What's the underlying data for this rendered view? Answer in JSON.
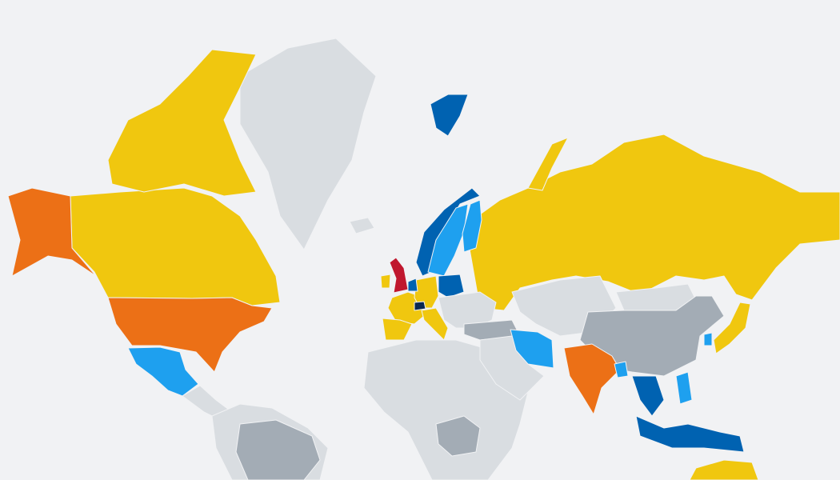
{
  "map": {
    "background": "#f1f2f4",
    "categories": {
      "none": "#d9dde1",
      "low": "#a3acb5",
      "yellow": "#f0c70f",
      "orange": "#ec7016",
      "light_blue": "#1ea0ef",
      "dark_blue": "#0062b1",
      "red": "#c0172e",
      "navy": "#0b2850"
    },
    "regions": [
      {
        "name": "greenland",
        "category": "none"
      },
      {
        "name": "canada",
        "category": "yellow"
      },
      {
        "name": "canada-arctic-islands",
        "category": "yellow"
      },
      {
        "name": "alaska",
        "category": "orange"
      },
      {
        "name": "united-states",
        "category": "orange"
      },
      {
        "name": "mexico",
        "category": "light_blue"
      },
      {
        "name": "central-america",
        "category": "none"
      },
      {
        "name": "south-america",
        "category": "none"
      },
      {
        "name": "brazil",
        "category": "low"
      },
      {
        "name": "russia",
        "category": "yellow"
      },
      {
        "name": "russia-arctic-islands",
        "category": "yellow"
      },
      {
        "name": "svalbard",
        "category": "dark_blue"
      },
      {
        "name": "norway",
        "category": "dark_blue"
      },
      {
        "name": "sweden",
        "category": "light_blue"
      },
      {
        "name": "finland",
        "category": "light_blue"
      },
      {
        "name": "united-kingdom",
        "category": "red"
      },
      {
        "name": "ireland",
        "category": "yellow"
      },
      {
        "name": "france",
        "category": "yellow"
      },
      {
        "name": "spain-portugal",
        "category": "yellow"
      },
      {
        "name": "germany",
        "category": "yellow"
      },
      {
        "name": "netherlands",
        "category": "dark_blue"
      },
      {
        "name": "poland",
        "category": "dark_blue"
      },
      {
        "name": "switzerland",
        "category": "navy"
      },
      {
        "name": "italy",
        "category": "yellow"
      },
      {
        "name": "romania",
        "category": "light_blue"
      },
      {
        "name": "eastern-europe",
        "category": "none"
      },
      {
        "name": "turkey",
        "category": "low"
      },
      {
        "name": "africa",
        "category": "none"
      },
      {
        "name": "dr-congo",
        "category": "low"
      },
      {
        "name": "middle-east",
        "category": "none"
      },
      {
        "name": "iran",
        "category": "light_blue"
      },
      {
        "name": "kazakhstan-central-asia",
        "category": "none"
      },
      {
        "name": "mongolia",
        "category": "none"
      },
      {
        "name": "china",
        "category": "low"
      },
      {
        "name": "india",
        "category": "orange"
      },
      {
        "name": "bangladesh",
        "category": "light_blue"
      },
      {
        "name": "southeast-asia",
        "category": "dark_blue"
      },
      {
        "name": "indonesia",
        "category": "dark_blue"
      },
      {
        "name": "philippines",
        "category": "light_blue"
      },
      {
        "name": "japan",
        "category": "yellow"
      },
      {
        "name": "south-korea",
        "category": "light_blue"
      },
      {
        "name": "australia",
        "category": "yellow"
      },
      {
        "name": "iceland",
        "category": "none"
      }
    ]
  }
}
